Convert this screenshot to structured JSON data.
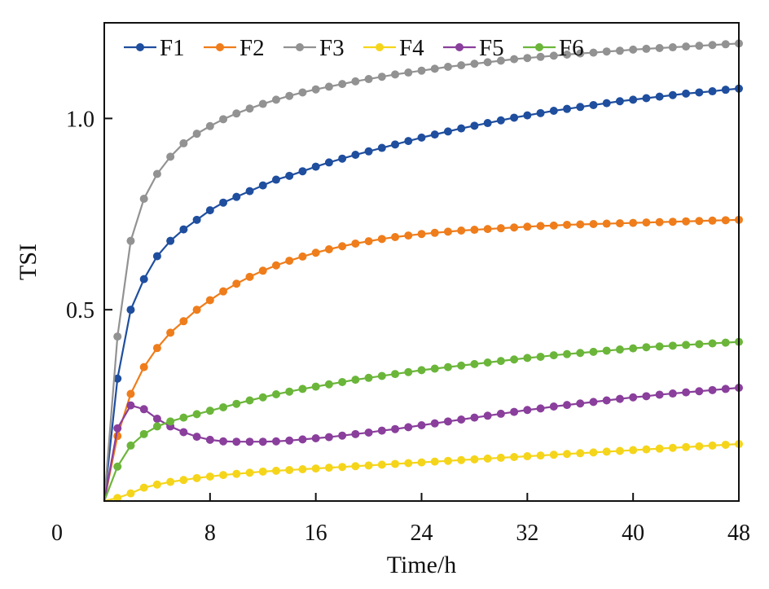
{
  "chart_data": {
    "type": "line",
    "title": "",
    "xlabel": "Time/h",
    "ylabel": "TSI",
    "xlim": [
      0,
      48
    ],
    "ylim": [
      0,
      1.25
    ],
    "xticks": [
      0,
      8,
      16,
      24,
      32,
      40,
      48
    ],
    "xtick_labels": [
      "0",
      "8",
      "16",
      "24",
      "32",
      "40",
      "48"
    ],
    "yticks": [
      0.5,
      1.0
    ],
    "ytick_labels": [
      "0.5",
      "1.0"
    ],
    "grid": false,
    "legend": "top, single row",
    "x": [
      0,
      1,
      2,
      3,
      4,
      5,
      6,
      7,
      8,
      9,
      10,
      11,
      12,
      13,
      14,
      15,
      16,
      17,
      18,
      19,
      20,
      21,
      22,
      23,
      24,
      25,
      26,
      27,
      28,
      29,
      30,
      31,
      32,
      33,
      34,
      35,
      36,
      37,
      38,
      39,
      40,
      41,
      42,
      43,
      44,
      45,
      46,
      47,
      48
    ],
    "series": [
      {
        "name": "F1",
        "color": "#1f4e9e",
        "values": [
          0,
          0.32,
          0.5,
          0.58,
          0.64,
          0.68,
          0.71,
          0.735,
          0.76,
          0.78,
          0.795,
          0.81,
          0.825,
          0.84,
          0.85,
          0.862,
          0.874,
          0.885,
          0.895,
          0.905,
          0.914,
          0.923,
          0.932,
          0.941,
          0.95,
          0.958,
          0.966,
          0.974,
          0.981,
          0.988,
          0.995,
          1.002,
          1.008,
          1.014,
          1.02,
          1.025,
          1.03,
          1.035,
          1.04,
          1.045,
          1.049,
          1.053,
          1.057,
          1.061,
          1.065,
          1.068,
          1.071,
          1.075,
          1.078
        ]
      },
      {
        "name": "F2",
        "color": "#ef7d1b",
        "values": [
          0,
          0.17,
          0.28,
          0.35,
          0.4,
          0.44,
          0.47,
          0.5,
          0.525,
          0.548,
          0.568,
          0.586,
          0.602,
          0.616,
          0.628,
          0.639,
          0.649,
          0.658,
          0.666,
          0.673,
          0.679,
          0.685,
          0.69,
          0.694,
          0.698,
          0.701,
          0.704,
          0.707,
          0.709,
          0.711,
          0.713,
          0.715,
          0.717,
          0.719,
          0.72,
          0.722,
          0.723,
          0.724,
          0.725,
          0.726,
          0.727,
          0.728,
          0.729,
          0.73,
          0.731,
          0.732,
          0.733,
          0.734,
          0.735
        ]
      },
      {
        "name": "F3",
        "color": "#929292",
        "values": [
          0,
          0.43,
          0.68,
          0.79,
          0.855,
          0.9,
          0.935,
          0.96,
          0.98,
          0.998,
          1.013,
          1.026,
          1.038,
          1.049,
          1.059,
          1.068,
          1.076,
          1.083,
          1.09,
          1.097,
          1.103,
          1.109,
          1.115,
          1.12,
          1.125,
          1.13,
          1.135,
          1.139,
          1.143,
          1.147,
          1.151,
          1.155,
          1.158,
          1.161,
          1.164,
          1.167,
          1.17,
          1.172,
          1.175,
          1.177,
          1.18,
          1.182,
          1.184,
          1.186,
          1.188,
          1.19,
          1.192,
          1.194,
          1.196
        ]
      },
      {
        "name": "F4",
        "color": "#f5d51b",
        "values": [
          0,
          0.008,
          0.02,
          0.035,
          0.043,
          0.05,
          0.055,
          0.06,
          0.064,
          0.068,
          0.071,
          0.074,
          0.077,
          0.079,
          0.081,
          0.083,
          0.085,
          0.087,
          0.089,
          0.091,
          0.093,
          0.095,
          0.097,
          0.099,
          0.101,
          0.103,
          0.105,
          0.107,
          0.109,
          0.111,
          0.113,
          0.115,
          0.117,
          0.119,
          0.121,
          0.123,
          0.125,
          0.127,
          0.129,
          0.131,
          0.133,
          0.135,
          0.137,
          0.139,
          0.141,
          0.143,
          0.145,
          0.147,
          0.149
        ]
      },
      {
        "name": "F5",
        "color": "#8a3f9c",
        "values": [
          0,
          0.19,
          0.25,
          0.24,
          0.215,
          0.195,
          0.18,
          0.168,
          0.16,
          0.156,
          0.155,
          0.155,
          0.155,
          0.156,
          0.158,
          0.161,
          0.164,
          0.167,
          0.171,
          0.175,
          0.179,
          0.184,
          0.188,
          0.193,
          0.198,
          0.203,
          0.208,
          0.213,
          0.218,
          0.223,
          0.228,
          0.233,
          0.238,
          0.242,
          0.247,
          0.251,
          0.255,
          0.259,
          0.263,
          0.267,
          0.271,
          0.274,
          0.278,
          0.281,
          0.284,
          0.287,
          0.29,
          0.293,
          0.296
        ]
      },
      {
        "name": "F6",
        "color": "#6bb63a",
        "values": [
          0,
          0.09,
          0.145,
          0.175,
          0.195,
          0.208,
          0.218,
          0.227,
          0.236,
          0.245,
          0.254,
          0.263,
          0.271,
          0.279,
          0.286,
          0.293,
          0.299,
          0.305,
          0.311,
          0.317,
          0.322,
          0.327,
          0.332,
          0.337,
          0.342,
          0.346,
          0.35,
          0.354,
          0.358,
          0.362,
          0.366,
          0.37,
          0.374,
          0.377,
          0.381,
          0.384,
          0.387,
          0.39,
          0.393,
          0.396,
          0.399,
          0.402,
          0.404,
          0.406,
          0.408,
          0.41,
          0.412,
          0.414,
          0.416
        ]
      }
    ]
  }
}
